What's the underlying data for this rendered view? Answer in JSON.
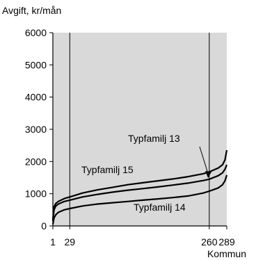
{
  "chart_data": {
    "type": "line",
    "ylabel": "Avgift, kr/mån",
    "xlabel": "Kommun",
    "xlim": [
      1,
      289
    ],
    "ylim": [
      0,
      6000
    ],
    "yticks": [
      0,
      1000,
      2000,
      3000,
      4000,
      5000,
      6000
    ],
    "xticks": [
      1,
      29,
      260,
      289
    ],
    "reference_lines_x": [
      29,
      260
    ],
    "plot_background": "#d9d9d9",
    "grid": false,
    "series": [
      {
        "name": "Typfamilj 13",
        "x": [
          1,
          3,
          6,
          10,
          20,
          29,
          50,
          75,
          100,
          125,
          150,
          175,
          200,
          225,
          250,
          260,
          275,
          282,
          286,
          289
        ],
        "values": [
          200,
          600,
          700,
          760,
          850,
          900,
          1020,
          1120,
          1200,
          1280,
          1340,
          1400,
          1460,
          1530,
          1620,
          1680,
          1800,
          1900,
          2050,
          2350
        ]
      },
      {
        "name": "Typfamilj 15",
        "x": [
          1,
          3,
          6,
          10,
          20,
          29,
          50,
          75,
          100,
          125,
          150,
          175,
          200,
          225,
          250,
          260,
          275,
          282,
          286,
          289
        ],
        "values": [
          150,
          500,
          620,
          680,
          760,
          800,
          900,
          980,
          1050,
          1110,
          1160,
          1210,
          1270,
          1330,
          1410,
          1450,
          1560,
          1650,
          1760,
          1900
        ]
      },
      {
        "name": "Typfamilj 14",
        "x": [
          1,
          3,
          6,
          10,
          20,
          29,
          50,
          75,
          100,
          125,
          150,
          175,
          200,
          225,
          250,
          260,
          275,
          282,
          286,
          289
        ],
        "values": [
          50,
          250,
          350,
          420,
          500,
          540,
          620,
          680,
          720,
          760,
          800,
          840,
          880,
          930,
          1020,
          1080,
          1180,
          1280,
          1400,
          1580
        ]
      }
    ],
    "annotations": [
      "Typfamilj 13",
      "Typfamilj 15",
      "Typfamilj 14"
    ]
  }
}
